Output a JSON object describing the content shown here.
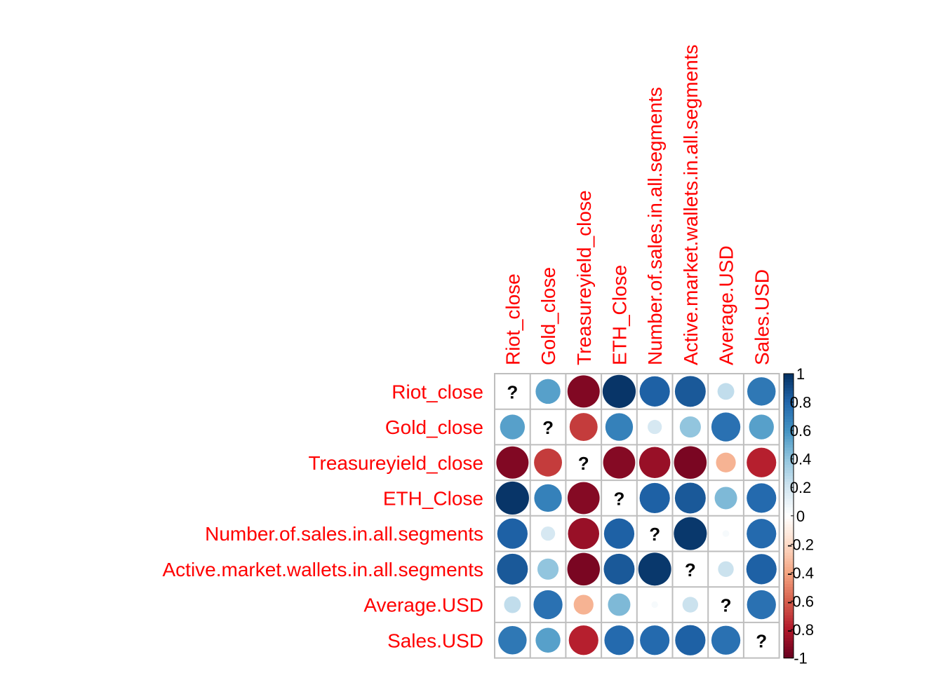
{
  "colors": {
    "label": "#ff0000",
    "grid": "#bebebe",
    "scale": [
      "#67001f",
      "#b2182b",
      "#d6604d",
      "#f4a582",
      "#fddbc7",
      "#ffffff",
      "#d1e5f0",
      "#92c5de",
      "#4393c3",
      "#2166ac",
      "#053061"
    ]
  },
  "chart_data": {
    "type": "heatmap",
    "style": "circle correlation matrix",
    "variables": [
      "Riot_close",
      "Gold_close",
      "Treasureyield_close",
      "ETH_Close",
      "Number.of.sales.in.all.segments",
      "Active.market.wallets.in.all.segments",
      "Average.USD",
      "Sales.USD"
    ],
    "values": [
      [
        null,
        0.55,
        -0.93,
        0.98,
        0.82,
        0.85,
        0.25,
        0.72
      ],
      [
        0.55,
        null,
        -0.7,
        0.68,
        0.18,
        0.4,
        0.75,
        0.55
      ],
      [
        -0.93,
        -0.7,
        null,
        -0.92,
        -0.87,
        -0.95,
        -0.35,
        -0.78
      ],
      [
        0.98,
        0.68,
        -0.92,
        null,
        0.82,
        0.85,
        0.45,
        0.78
      ],
      [
        0.82,
        0.18,
        -0.87,
        0.82,
        null,
        0.97,
        0.04,
        0.78
      ],
      [
        0.85,
        0.4,
        -0.95,
        0.85,
        0.97,
        null,
        0.22,
        0.82
      ],
      [
        0.25,
        0.75,
        -0.35,
        0.45,
        0.04,
        0.22,
        null,
        0.75
      ],
      [
        0.72,
        0.55,
        -0.78,
        0.78,
        0.78,
        0.82,
        0.75,
        null
      ]
    ],
    "missing_symbol": "?",
    "colorbar": {
      "range": [
        -1,
        1
      ],
      "ticks": [
        "1",
        "0.8",
        "0.6",
        "0.4",
        "0.2",
        "0",
        "-0.2",
        "-0.4",
        "-0.6",
        "-0.8",
        "-1"
      ]
    }
  }
}
